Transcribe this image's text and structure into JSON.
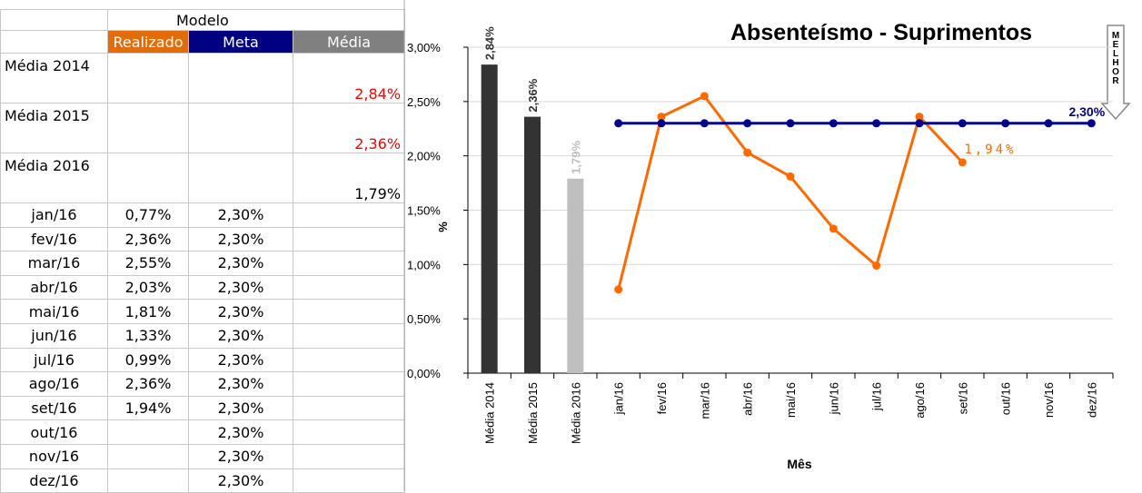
{
  "table": {
    "header": "Modelo",
    "columns": [
      "Realizado",
      "Meta",
      "Média"
    ],
    "rows": [
      [
        "Média 2014",
        null,
        null,
        "2,84%"
      ],
      [
        "Média 2015",
        null,
        null,
        "2,36%"
      ],
      [
        "Média 2016",
        null,
        null,
        "1,79%"
      ],
      [
        "jan/16",
        "0,77%",
        "2,30%",
        null
      ],
      [
        "fev/16",
        "2,36%",
        "2,30%",
        null
      ],
      [
        "mar/16",
        "2,55%",
        "2,30%",
        null
      ],
      [
        "abr/16",
        "2,03%",
        "2,30%",
        null
      ],
      [
        "mai/16",
        "1,81%",
        "2,30%",
        null
      ],
      [
        "jun/16",
        "1,33%",
        "2,30%",
        null
      ],
      [
        "jul/16",
        "0,99%",
        "2,30%",
        null
      ],
      [
        "ago/16",
        "2,36%",
        "2,30%",
        null
      ],
      [
        "set/16",
        "1,94%",
        "2,30%",
        null
      ],
      [
        "out/16",
        null,
        "2,30%",
        null
      ],
      [
        "nov/16",
        null,
        "2,30%",
        null
      ],
      [
        "dez/16",
        null,
        "2,30%",
        null
      ]
    ]
  },
  "chart_data": {
    "type": "combo",
    "title": "Absenteísmo - Suprimentos",
    "y_label": "%",
    "x_label": "Mês",
    "annotation": "MELHOR",
    "categories": [
      "Média 2014",
      "Média 2015",
      "Média 2016",
      "jan/16",
      "fev/16",
      "mar/16",
      "abr/16",
      "mai/16",
      "jun/16",
      "jul/16",
      "ago/16",
      "set/16",
      "out/16",
      "nov/16",
      "dez/16"
    ],
    "ylim": [
      0,
      3
    ],
    "yticks": [
      {
        "value": 0,
        "label": "0,00%"
      },
      {
        "value": 0.5,
        "label": "0,50%"
      },
      {
        "value": 1,
        "label": "1,00%"
      },
      {
        "value": 1.5,
        "label": "1,50%"
      },
      {
        "value": 2,
        "label": "2,00%"
      },
      {
        "value": 2.5,
        "label": "2,50%"
      },
      {
        "value": 3,
        "label": "3,00%"
      }
    ],
    "grid": true,
    "series": [
      {
        "type": "bar",
        "colors": [
          "#333333",
          "#333333",
          "#bfbfbf"
        ],
        "values": [
          2.84,
          2.36,
          1.79,
          null,
          null,
          null,
          null,
          null,
          null,
          null,
          null,
          null,
          null,
          null,
          null
        ],
        "value_labels": [
          "2,84%",
          "2,36%",
          "1,79%",
          null,
          null,
          null,
          null,
          null,
          null,
          null,
          null,
          null,
          null,
          null,
          null
        ]
      },
      {
        "type": "line",
        "color": "#ff6a00",
        "values": [
          null,
          null,
          null,
          0.77,
          2.36,
          2.55,
          2.03,
          1.81,
          1.33,
          0.99,
          2.36,
          1.94,
          null,
          null,
          null
        ],
        "value_labels": [
          null,
          null,
          null,
          null,
          null,
          null,
          null,
          null,
          null,
          null,
          null,
          "1,94%",
          null,
          null,
          null
        ]
      },
      {
        "type": "line",
        "color": "#00008b",
        "values": [
          null,
          null,
          null,
          2.3,
          2.3,
          2.3,
          2.3,
          2.3,
          2.3,
          2.3,
          2.3,
          2.3,
          2.3,
          2.3,
          2.3
        ],
        "value_labels": [
          null,
          null,
          null,
          null,
          null,
          null,
          null,
          null,
          null,
          null,
          null,
          null,
          null,
          null,
          "2,30%"
        ]
      }
    ]
  }
}
